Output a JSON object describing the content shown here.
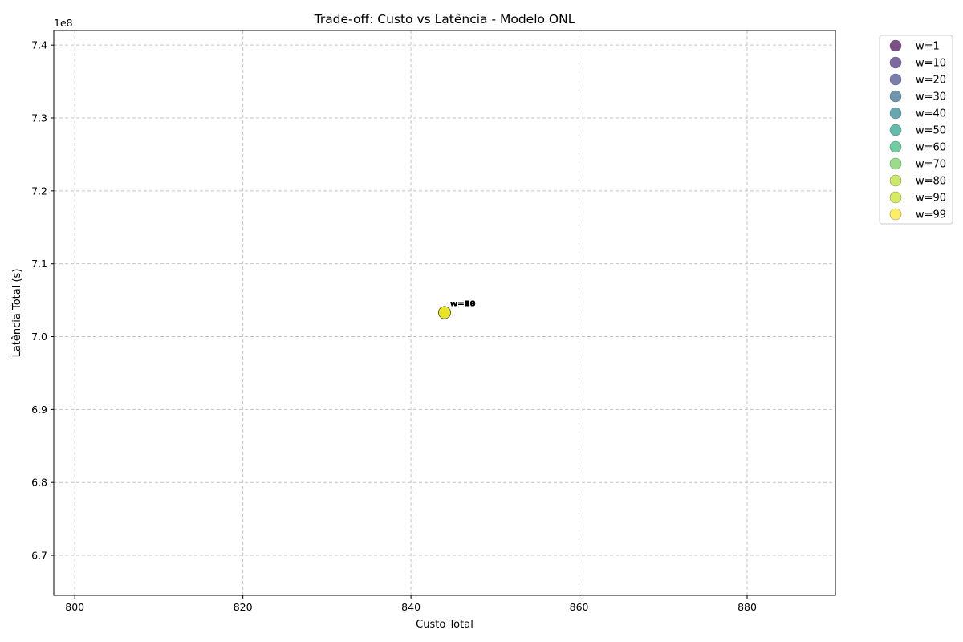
{
  "chart_data": {
    "type": "scatter",
    "title": "Trade-off: Custo vs Latência - Modelo ONL",
    "xlabel": "Custo Total",
    "ylabel": "Latência Total (s)",
    "y_offset_label": "1e8",
    "xlim": [
      797.5,
      890.5
    ],
    "ylim": [
      6.645,
      7.42
    ],
    "x_ticks": [
      800,
      820,
      840,
      860,
      880
    ],
    "x_tick_labels": [
      "800",
      "820",
      "840",
      "860",
      "880"
    ],
    "y_ticks": [
      6.7,
      6.8,
      6.9,
      7.0,
      7.1,
      7.2,
      7.3,
      7.4
    ],
    "y_tick_labels": [
      "6.7",
      "6.8",
      "6.9",
      "7.0",
      "7.1",
      "7.2",
      "7.3",
      "7.4"
    ],
    "grid": true,
    "legend_position": "outside-top-right",
    "series": [
      {
        "name": "w=1",
        "label": "w=1",
        "color": "#440154",
        "x": 844.0,
        "y": 7.033
      },
      {
        "name": "w=10",
        "label": "w=10",
        "color": "#482878",
        "x": 844.0,
        "y": 7.033
      },
      {
        "name": "w=20",
        "label": "w=20",
        "color": "#3e4989",
        "x": 844.0,
        "y": 7.033
      },
      {
        "name": "w=30",
        "label": "w=30",
        "color": "#31688e",
        "x": 844.0,
        "y": 7.033
      },
      {
        "name": "w=40",
        "label": "w=40",
        "color": "#26828e",
        "x": 844.0,
        "y": 7.033
      },
      {
        "name": "w=50",
        "label": "w=50",
        "color": "#1f9e89",
        "x": 844.0,
        "y": 7.033
      },
      {
        "name": "w=60",
        "label": "w=60",
        "color": "#35b779",
        "x": 844.0,
        "y": 7.033
      },
      {
        "name": "w=70",
        "label": "w=70",
        "color": "#6ece58",
        "x": 844.0,
        "y": 7.033
      },
      {
        "name": "w=80",
        "label": "w=80",
        "color": "#b5de2b",
        "x": 844.0,
        "y": 7.033
      },
      {
        "name": "w=90",
        "label": "w=90",
        "color": "#c8e020",
        "x": 844.0,
        "y": 7.033
      },
      {
        "name": "w=99",
        "label": "w=99",
        "color": "#fde725",
        "x": 844.0,
        "y": 7.033
      }
    ]
  }
}
